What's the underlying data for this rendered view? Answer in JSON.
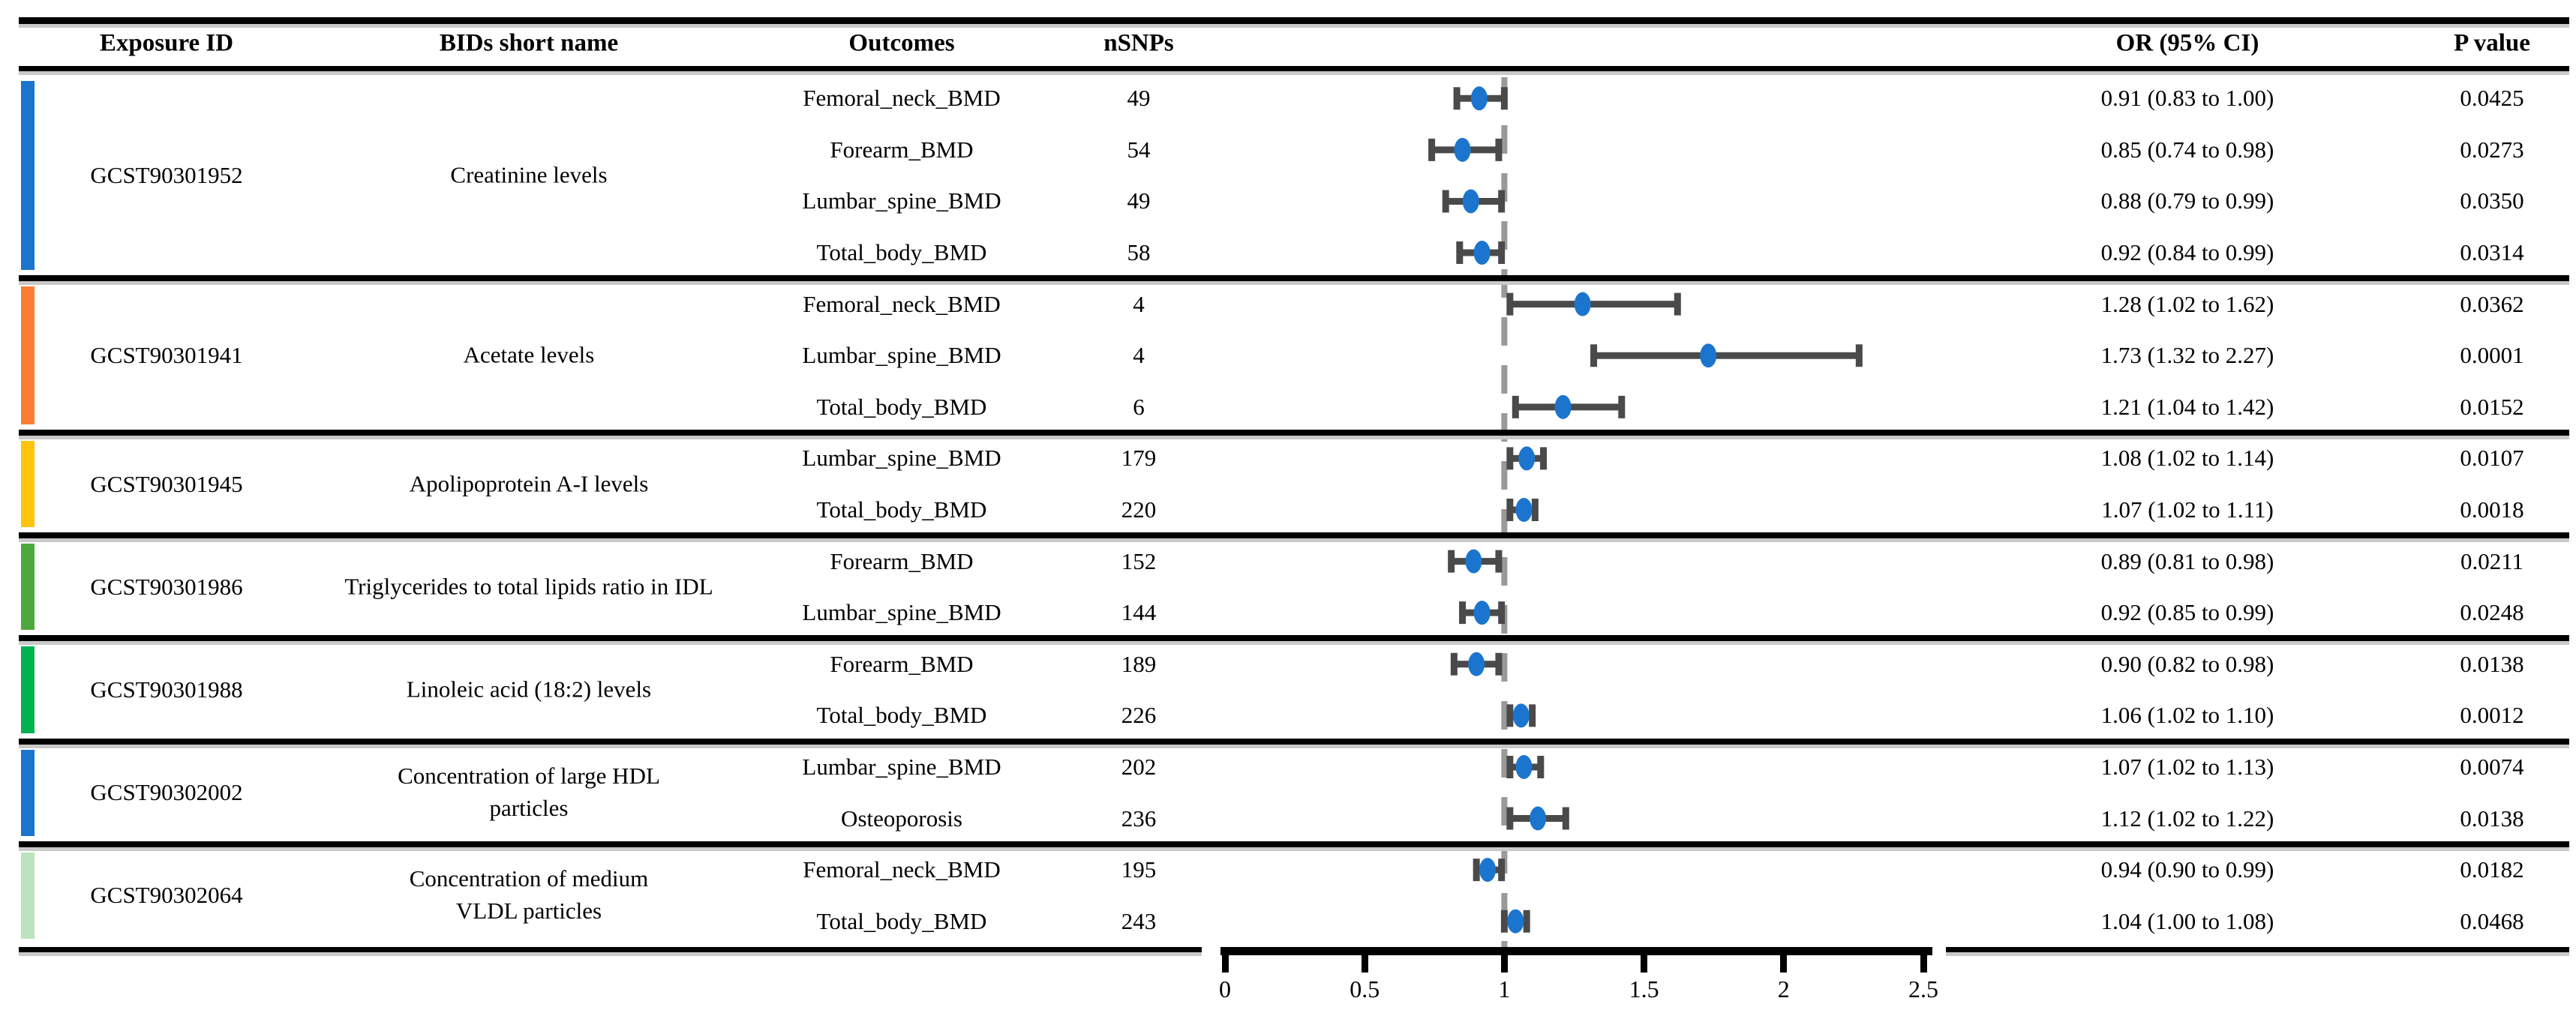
{
  "figure": {
    "columns": {
      "exposure_id": "Exposure ID",
      "bids_short_name": "BIDs short name",
      "outcomes": "Outcomes",
      "nsnps": "nSNPs",
      "or_ci": "OR (95% CI)",
      "p_value": "P value"
    }
  },
  "chart_data": {
    "type": "scatter",
    "subtype": "forest-plot",
    "xaxis": {
      "min": 0,
      "max": 2.5,
      "tick_labels": [
        "0",
        "0.5",
        "1",
        "1.5",
        "2",
        "2.5"
      ],
      "tick_values": [
        0,
        0.5,
        1,
        1.5,
        2,
        2.5
      ],
      "reference_line": 1
    },
    "colors": {
      "point": "#1B75CE",
      "error_bar": "#4A4A4A",
      "reference_line": "#9A9A9A"
    },
    "groups": [
      {
        "exposure_id": "GCST90301952",
        "name_lines": [
          "Creatinine levels"
        ],
        "color": "#1B75CE",
        "rows": [
          {
            "outcome": "Femoral_neck_BMD",
            "nsnps": "49",
            "or": 0.91,
            "lo": 0.83,
            "hi": 1.0,
            "or_ci": "0.91 (0.83 to 1.00)",
            "p": "0.0425"
          },
          {
            "outcome": "Forearm_BMD",
            "nsnps": "54",
            "or": 0.85,
            "lo": 0.74,
            "hi": 0.98,
            "or_ci": "0.85 (0.74 to 0.98)",
            "p": "0.0273"
          },
          {
            "outcome": "Lumbar_spine_BMD",
            "nsnps": "49",
            "or": 0.88,
            "lo": 0.79,
            "hi": 0.99,
            "or_ci": "0.88 (0.79 to 0.99)",
            "p": "0.0350"
          },
          {
            "outcome": "Total_body_BMD",
            "nsnps": "58",
            "or": 0.92,
            "lo": 0.84,
            "hi": 0.99,
            "or_ci": "0.92 (0.84 to 0.99)",
            "p": "0.0314"
          }
        ]
      },
      {
        "exposure_id": "GCST90301941",
        "name_lines": [
          "Acetate levels"
        ],
        "color": "#FB7D32",
        "rows": [
          {
            "outcome": "Femoral_neck_BMD",
            "nsnps": "4",
            "or": 1.28,
            "lo": 1.02,
            "hi": 1.62,
            "or_ci": "1.28 (1.02 to 1.62)",
            "p": "0.0362"
          },
          {
            "outcome": "Lumbar_spine_BMD",
            "nsnps": "4",
            "or": 1.73,
            "lo": 1.32,
            "hi": 2.27,
            "or_ci": "1.73 (1.32 to 2.27)",
            "p": "0.0001"
          },
          {
            "outcome": "Total_body_BMD",
            "nsnps": "6",
            "or": 1.21,
            "lo": 1.04,
            "hi": 1.42,
            "or_ci": "1.21 (1.04 to 1.42)",
            "p": "0.0152"
          }
        ]
      },
      {
        "exposure_id": "GCST90301945",
        "name_lines": [
          "Apolipoprotein A-I levels"
        ],
        "color": "#FFC40C",
        "rows": [
          {
            "outcome": "Lumbar_spine_BMD",
            "nsnps": "179",
            "or": 1.08,
            "lo": 1.02,
            "hi": 1.14,
            "or_ci": "1.08 (1.02 to 1.14)",
            "p": "0.0107"
          },
          {
            "outcome": "Total_body_BMD",
            "nsnps": "220",
            "or": 1.07,
            "lo": 1.02,
            "hi": 1.11,
            "or_ci": "1.07 (1.02 to 1.11)",
            "p": "0.0018"
          }
        ]
      },
      {
        "exposure_id": "GCST90301986",
        "name_lines": [
          "Triglycerides to total lipids ratio in IDL"
        ],
        "color": "#4DA93C",
        "rows": [
          {
            "outcome": "Forearm_BMD",
            "nsnps": "152",
            "or": 0.89,
            "lo": 0.81,
            "hi": 0.98,
            "or_ci": "0.89 (0.81 to 0.98)",
            "p": "0.0211"
          },
          {
            "outcome": "Lumbar_spine_BMD",
            "nsnps": "144",
            "or": 0.92,
            "lo": 0.85,
            "hi": 0.99,
            "or_ci": "0.92 (0.85 to 0.99)",
            "p": "0.0248"
          }
        ]
      },
      {
        "exposure_id": "GCST90301988",
        "name_lines": [
          "Linoleic acid (18:2) levels"
        ],
        "color": "#00B251",
        "rows": [
          {
            "outcome": "Forearm_BMD",
            "nsnps": "189",
            "or": 0.9,
            "lo": 0.82,
            "hi": 0.98,
            "or_ci": "0.90 (0.82 to 0.98)",
            "p": "0.0138"
          },
          {
            "outcome": "Total_body_BMD",
            "nsnps": "226",
            "or": 1.06,
            "lo": 1.02,
            "hi": 1.1,
            "or_ci": "1.06 (1.02 to 1.10)",
            "p": "0.0012"
          }
        ]
      },
      {
        "exposure_id": "GCST90302002",
        "name_lines": [
          "Concentration of large HDL",
          "particles"
        ],
        "color": "#1B75CE",
        "rows": [
          {
            "outcome": "Lumbar_spine_BMD",
            "nsnps": "202",
            "or": 1.07,
            "lo": 1.02,
            "hi": 1.13,
            "or_ci": "1.07 (1.02 to 1.13)",
            "p": "0.0074"
          },
          {
            "outcome": "Osteoporosis",
            "nsnps": "236",
            "or": 1.12,
            "lo": 1.02,
            "hi": 1.22,
            "or_ci": "1.12 (1.02 to 1.22)",
            "p": "0.0138"
          }
        ]
      },
      {
        "exposure_id": "GCST90302064",
        "name_lines": [
          "Concentration of medium",
          "VLDL particles"
        ],
        "color": "#BCE3BC",
        "rows": [
          {
            "outcome": "Femoral_neck_BMD",
            "nsnps": "195",
            "or": 0.94,
            "lo": 0.9,
            "hi": 0.99,
            "or_ci": "0.94 (0.90 to 0.99)",
            "p": "0.0182"
          },
          {
            "outcome": "Total_body_BMD",
            "nsnps": "243",
            "or": 1.04,
            "lo": 1.0,
            "hi": 1.08,
            "or_ci": "1.04 (1.00 to 1.08)",
            "p": "0.0468"
          }
        ]
      }
    ]
  }
}
